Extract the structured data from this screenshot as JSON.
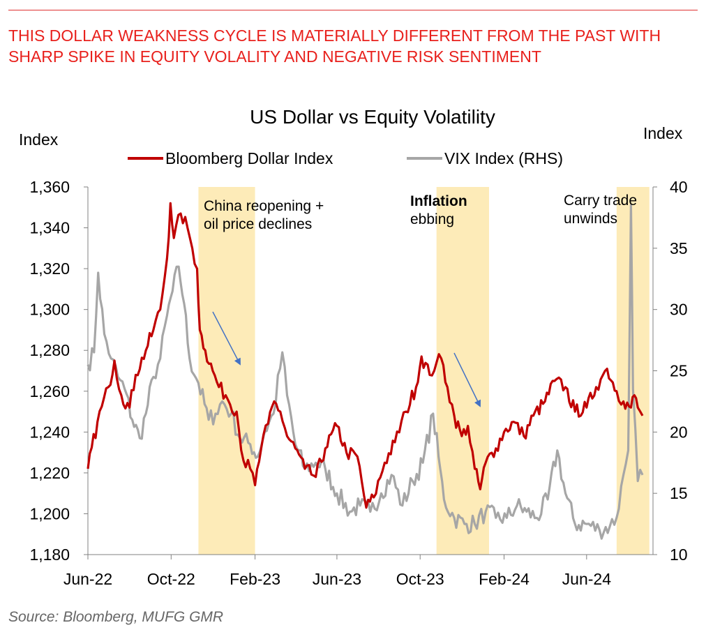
{
  "headline": "THIS DOLLAR WEAKNESS CYCLE IS MATERIALLY DIFFERENT FROM THE PAST WITH SHARP SPIKE IN EQUITY VOLALITY AND NEGATIVE RISK SENTIMENT",
  "source": "Source: Bloomberg, MUFG GMR",
  "colors": {
    "dollar": "#c00000",
    "vix": "#a6a6a6",
    "shade": "#fdebb8",
    "arrow": "#4472c4",
    "headline": "#e8201c"
  },
  "chart_data": {
    "type": "line",
    "title": "US Dollar vs Equity Volatility",
    "ylabel_left": "Index",
    "ylabel_right": "Index",
    "ylim_left": [
      1180,
      1360
    ],
    "ylim_right": [
      10,
      40
    ],
    "yticks_left": [
      "1,360",
      "1,340",
      "1,320",
      "1,300",
      "1,280",
      "1,260",
      "1,240",
      "1,220",
      "1,200",
      "1,180"
    ],
    "yticks_right": [
      "40",
      "35",
      "30",
      "25",
      "20",
      "15",
      "10"
    ],
    "xticks": [
      "Jun-22",
      "Oct-22",
      "Feb-23",
      "Jun-23",
      "Oct-23",
      "Feb-24",
      "Jun-24"
    ],
    "xrange_months": [
      "2022-06",
      "2024-09"
    ],
    "legend_position": "top-center",
    "series": [
      {
        "name": "Bloomberg Dollar Index",
        "axis": "left",
        "points": [
          [
            "2022-06-01",
            1222
          ],
          [
            "2022-06-15",
            1245
          ],
          [
            "2022-07-01",
            1262
          ],
          [
            "2022-07-10",
            1275
          ],
          [
            "2022-07-20",
            1258
          ],
          [
            "2022-08-01",
            1252
          ],
          [
            "2022-08-10",
            1268
          ],
          [
            "2022-08-25",
            1280
          ],
          [
            "2022-09-05",
            1290
          ],
          [
            "2022-09-15",
            1300
          ],
          [
            "2022-09-25",
            1325
          ],
          [
            "2022-09-30",
            1352
          ],
          [
            "2022-10-05",
            1335
          ],
          [
            "2022-10-15",
            1347
          ],
          [
            "2022-10-25",
            1340
          ],
          [
            "2022-11-01",
            1330
          ],
          [
            "2022-11-08",
            1320
          ],
          [
            "2022-11-12",
            1290
          ],
          [
            "2022-11-20",
            1280
          ],
          [
            "2022-12-01",
            1270
          ],
          [
            "2022-12-10",
            1262
          ],
          [
            "2022-12-20",
            1258
          ],
          [
            "2023-01-05",
            1250
          ],
          [
            "2023-01-15",
            1226
          ],
          [
            "2023-01-25",
            1222
          ],
          [
            "2023-02-01",
            1214
          ],
          [
            "2023-02-10",
            1232
          ],
          [
            "2023-02-20",
            1244
          ],
          [
            "2023-03-01",
            1255
          ],
          [
            "2023-03-10",
            1250
          ],
          [
            "2023-03-20",
            1238
          ],
          [
            "2023-04-01",
            1232
          ],
          [
            "2023-04-15",
            1222
          ],
          [
            "2023-05-01",
            1218
          ],
          [
            "2023-05-15",
            1232
          ],
          [
            "2023-06-01",
            1243
          ],
          [
            "2023-06-15",
            1230
          ],
          [
            "2023-07-01",
            1228
          ],
          [
            "2023-07-14",
            1203
          ],
          [
            "2023-07-25",
            1208
          ],
          [
            "2023-08-10",
            1225
          ],
          [
            "2023-08-25",
            1235
          ],
          [
            "2023-09-10",
            1250
          ],
          [
            "2023-09-25",
            1262
          ],
          [
            "2023-10-03",
            1277
          ],
          [
            "2023-10-15",
            1268
          ],
          [
            "2023-10-25",
            1274
          ],
          [
            "2023-11-01",
            1276
          ],
          [
            "2023-11-10",
            1262
          ],
          [
            "2023-11-20",
            1248
          ],
          [
            "2023-12-01",
            1238
          ],
          [
            "2023-12-10",
            1243
          ],
          [
            "2023-12-20",
            1222
          ],
          [
            "2023-12-28",
            1212
          ],
          [
            "2024-01-05",
            1225
          ],
          [
            "2024-01-20",
            1232
          ],
          [
            "2024-02-01",
            1240
          ],
          [
            "2024-02-15",
            1245
          ],
          [
            "2024-03-01",
            1238
          ],
          [
            "2024-03-15",
            1248
          ],
          [
            "2024-04-01",
            1255
          ],
          [
            "2024-04-15",
            1265
          ],
          [
            "2024-05-01",
            1262
          ],
          [
            "2024-05-15",
            1250
          ],
          [
            "2024-06-01",
            1252
          ],
          [
            "2024-06-15",
            1262
          ],
          [
            "2024-06-25",
            1268
          ],
          [
            "2024-07-01",
            1271
          ],
          [
            "2024-07-15",
            1260
          ],
          [
            "2024-07-25",
            1255
          ],
          [
            "2024-08-05",
            1252
          ],
          [
            "2024-08-10",
            1258
          ],
          [
            "2024-08-15",
            1252
          ],
          [
            "2024-08-22",
            1248
          ]
        ]
      },
      {
        "name": "VIX Index (RHS)",
        "axis": "right",
        "points": [
          [
            "2022-06-01",
            25.5
          ],
          [
            "2022-06-10",
            26.5
          ],
          [
            "2022-06-16",
            33.0
          ],
          [
            "2022-06-25",
            28.0
          ],
          [
            "2022-07-05",
            26.0
          ],
          [
            "2022-07-15",
            24.5
          ],
          [
            "2022-07-25",
            23.5
          ],
          [
            "2022-08-05",
            21.0
          ],
          [
            "2022-08-16",
            19.5
          ],
          [
            "2022-08-25",
            21.5
          ],
          [
            "2022-09-05",
            24.5
          ],
          [
            "2022-09-15",
            26.0
          ],
          [
            "2022-09-25",
            29.5
          ],
          [
            "2022-10-03",
            31.5
          ],
          [
            "2022-10-12",
            33.5
          ],
          [
            "2022-10-20",
            30.5
          ],
          [
            "2022-10-28",
            26.0
          ],
          [
            "2022-11-10",
            24.0
          ],
          [
            "2022-11-25",
            21.0
          ],
          [
            "2022-12-05",
            21.5
          ],
          [
            "2022-12-15",
            22.5
          ],
          [
            "2022-12-28",
            21.5
          ],
          [
            "2023-01-10",
            19.5
          ],
          [
            "2023-01-25",
            19.0
          ],
          [
            "2023-02-05",
            18.0
          ],
          [
            "2023-02-15",
            20.0
          ],
          [
            "2023-02-28",
            21.5
          ],
          [
            "2023-03-13",
            26.5
          ],
          [
            "2023-03-20",
            23.0
          ],
          [
            "2023-04-01",
            19.0
          ],
          [
            "2023-04-15",
            17.0
          ],
          [
            "2023-05-01",
            17.5
          ],
          [
            "2023-05-15",
            17.0
          ],
          [
            "2023-06-01",
            15.0
          ],
          [
            "2023-06-20",
            13.5
          ],
          [
            "2023-07-05",
            14.0
          ],
          [
            "2023-07-20",
            13.5
          ],
          [
            "2023-08-05",
            15.0
          ],
          [
            "2023-08-20",
            16.5
          ],
          [
            "2023-09-05",
            14.0
          ],
          [
            "2023-09-20",
            16.0
          ],
          [
            "2023-10-05",
            17.5
          ],
          [
            "2023-10-20",
            21.5
          ],
          [
            "2023-10-28",
            18.0
          ],
          [
            "2023-11-05",
            14.5
          ],
          [
            "2023-11-20",
            13.0
          ],
          [
            "2023-12-05",
            12.5
          ],
          [
            "2023-12-20",
            12.5
          ],
          [
            "2024-01-05",
            13.5
          ],
          [
            "2024-01-20",
            13.0
          ],
          [
            "2024-02-05",
            13.0
          ],
          [
            "2024-02-20",
            14.0
          ],
          [
            "2024-03-05",
            13.5
          ],
          [
            "2024-03-20",
            13.0
          ],
          [
            "2024-04-05",
            14.5
          ],
          [
            "2024-04-19",
            18.5
          ],
          [
            "2024-05-01",
            15.0
          ],
          [
            "2024-05-15",
            12.5
          ],
          [
            "2024-06-01",
            12.5
          ],
          [
            "2024-06-20",
            12.0
          ],
          [
            "2024-07-05",
            12.3
          ],
          [
            "2024-07-15",
            13.0
          ],
          [
            "2024-07-25",
            16.5
          ],
          [
            "2024-08-01",
            18.5
          ],
          [
            "2024-08-05",
            38.5
          ],
          [
            "2024-08-08",
            23.5
          ],
          [
            "2024-08-15",
            16.0
          ],
          [
            "2024-08-22",
            16.5
          ]
        ]
      }
    ],
    "shaded_periods": [
      {
        "start": "2022-11-10",
        "end": "2023-02-01",
        "label_lines": [
          "China reopening +",
          "oil price declines"
        ]
      },
      {
        "start": "2023-10-25",
        "end": "2024-01-10",
        "label_lines": [
          "Inflation",
          "ebbing"
        ]
      },
      {
        "start": "2024-07-15",
        "end": "2024-09-01",
        "label_lines": [
          "Carry trade",
          "unwinds"
        ]
      }
    ]
  }
}
